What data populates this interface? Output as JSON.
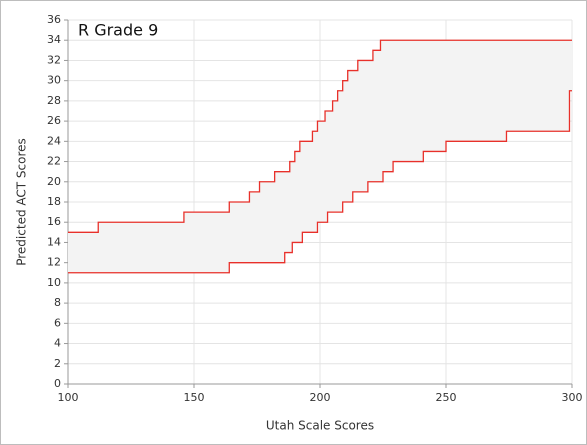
{
  "chart_data": {
    "type": "step-band",
    "title": "R Grade 9",
    "xlabel": "Utah Scale Scores",
    "ylabel": "Predicted ACT Scores",
    "xlim": [
      100,
      300
    ],
    "ylim": [
      0,
      36
    ],
    "xticks": [
      100,
      150,
      200,
      250,
      300
    ],
    "yticks": [
      0,
      2,
      4,
      6,
      8,
      10,
      12,
      14,
      16,
      18,
      20,
      22,
      24,
      26,
      28,
      30,
      32,
      34,
      36
    ],
    "grid": true,
    "fill_color": "#f3f3f3",
    "series": [
      {
        "color": "#e8302a",
        "x": [
          100,
          112,
          146,
          164,
          172,
          176,
          182,
          188,
          190,
          192,
          197,
          199,
          202,
          205,
          207,
          209,
          211,
          215,
          221,
          224,
          300
        ],
        "values": [
          15,
          16,
          17,
          18,
          19,
          20,
          21,
          22,
          23,
          24,
          25,
          26,
          27,
          28,
          29,
          30,
          31,
          32,
          33,
          34,
          34
        ]
      },
      {
        "color": "#e8302a",
        "x": [
          100,
          164,
          186,
          189,
          193,
          199,
          203,
          209,
          213,
          219,
          225,
          229,
          241,
          250,
          274,
          299,
          300
        ],
        "values": [
          11,
          12,
          13,
          14,
          15,
          16,
          17,
          18,
          19,
          20,
          21,
          22,
          23,
          24,
          25,
          29,
          29
        ]
      }
    ]
  }
}
